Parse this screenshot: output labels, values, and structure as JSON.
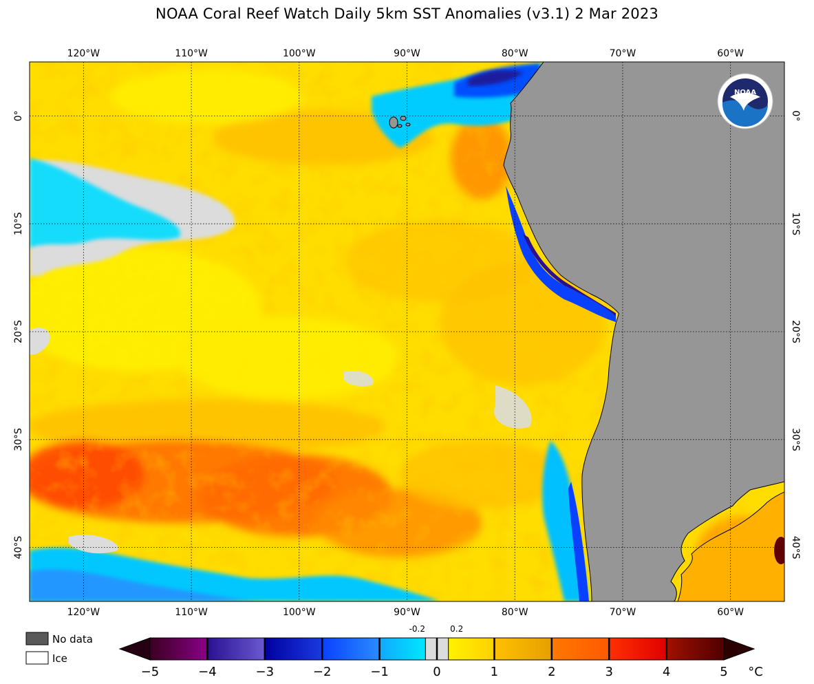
{
  "title": "NOAA Coral Reef Watch Daily 5km SST Anomalies  (v3.1)   2 Mar 2023",
  "map": {
    "lon_labels": [
      {
        "lon": -120,
        "label": "120°W"
      },
      {
        "lon": -110,
        "label": "110°W"
      },
      {
        "lon": -100,
        "label": "100°W"
      },
      {
        "lon": -90,
        "label": "90°W"
      },
      {
        "lon": -80,
        "label": "80°W"
      },
      {
        "lon": -70,
        "label": "70°W"
      },
      {
        "lon": -60,
        "label": "60°W"
      }
    ],
    "lat_labels": [
      {
        "lat": 0,
        "label": "0°"
      },
      {
        "lat": -10,
        "label": "10°S"
      },
      {
        "lat": -20,
        "label": "20°S"
      },
      {
        "lat": -30,
        "label": "30°S"
      },
      {
        "lat": -40,
        "label": "40°S"
      }
    ],
    "colors": {
      "land": "#969696",
      "nodata_ocean": "#dcdcdc",
      "yellow": "#ffee00",
      "gold": "#ffc800",
      "orange": "#ff8c00",
      "red_orange": "#ff4a00",
      "cyan": "#00e0ff",
      "blue": "#0a58ff",
      "navy": "#1a1a9c"
    },
    "logo_icon": "noaa-logo-icon"
  },
  "legend": {
    "no_data_label": "No data",
    "ice_label": "Ice",
    "no_data_color": "#595959",
    "ice_color": "#ffffff"
  },
  "colorbar": {
    "ticks": [
      "−5",
      "−4",
      "−3",
      "−2",
      "−1",
      "0",
      "1",
      "2",
      "3",
      "4",
      "5"
    ],
    "small_labels": [
      "-0.2",
      "0.2"
    ],
    "unit": "°C",
    "segments": [
      {
        "from": -5,
        "to": -4,
        "colors": [
          "#3a0020",
          "#8a0088"
        ]
      },
      {
        "from": -4,
        "to": -3,
        "colors": [
          "#2a1090",
          "#6a5ad0"
        ]
      },
      {
        "from": -3,
        "to": -2,
        "colors": [
          "#0000a0",
          "#1a3ae0"
        ]
      },
      {
        "from": -2,
        "to": -1,
        "colors": [
          "#0a40ff",
          "#2a8cff"
        ]
      },
      {
        "from": -1,
        "to": -0.2,
        "colors": [
          "#10a8ff",
          "#00e8ff"
        ]
      },
      {
        "from": -0.2,
        "to": 0.2,
        "colors": [
          "#dcdcdc",
          "#dcdcdc"
        ]
      },
      {
        "from": 0.2,
        "to": 1,
        "colors": [
          "#fff200",
          "#ffd000"
        ]
      },
      {
        "from": 1,
        "to": 2,
        "colors": [
          "#ffc000",
          "#e6a000"
        ]
      },
      {
        "from": 2,
        "to": 3,
        "colors": [
          "#ff7800",
          "#ff5a00"
        ]
      },
      {
        "from": 3,
        "to": 4,
        "colors": [
          "#ff3000",
          "#e00000"
        ]
      },
      {
        "from": 4,
        "to": 5,
        "colors": [
          "#a01000",
          "#500000"
        ]
      }
    ],
    "low_end_color": "#250012",
    "high_end_color": "#2a0000"
  }
}
